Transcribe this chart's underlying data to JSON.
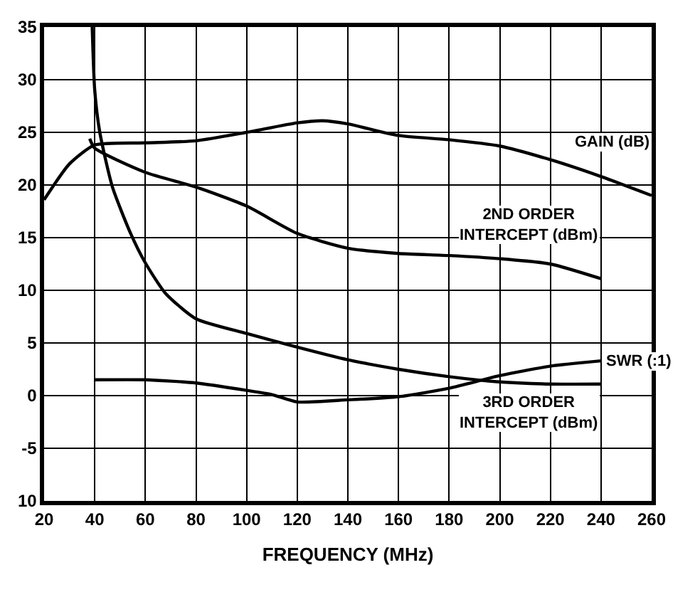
{
  "chart_data": {
    "type": "line",
    "xlabel": "FREQUENCY (MHz)",
    "xlim": [
      20,
      260
    ],
    "xticks": [
      20,
      40,
      60,
      80,
      100,
      120,
      140,
      160,
      180,
      200,
      220,
      240,
      260
    ],
    "ylim": [
      -10,
      35
    ],
    "yticks": [
      {
        "value": -10,
        "label": "10"
      },
      -5,
      0,
      5,
      10,
      15,
      20,
      25,
      30,
      35
    ],
    "grid": true,
    "legend": false,
    "marker": "none",
    "line_style": "solid",
    "series": [
      {
        "name": "GAIN (dB)",
        "color": "#000000",
        "x": [
          20,
          30,
          40,
          60,
          80,
          100,
          120,
          130,
          140,
          160,
          180,
          200,
          220,
          240,
          260
        ],
        "values": [
          18.6,
          22,
          23.8,
          24,
          24.2,
          25,
          25.9,
          26.1,
          25.8,
          24.7,
          24.3,
          23.7,
          22.4,
          20.8,
          19
        ]
      },
      {
        "name": "2ND ORDER\nINTERCEPT (dBm)",
        "color": "#000000",
        "x": [
          38,
          40,
          60,
          80,
          100,
          120,
          140,
          160,
          180,
          200,
          220,
          240
        ],
        "values": [
          24.4,
          23.5,
          21.2,
          19.8,
          18,
          15.4,
          14,
          13.5,
          13.3,
          13,
          12.5,
          11.1
        ]
      },
      {
        "name": "3RD ORDER\nINTERCEPT (dBm)",
        "color": "#000000",
        "x": [
          39,
          40,
          42,
          47,
          54,
          60,
          68,
          80,
          100,
          120,
          140,
          160,
          180,
          200,
          220,
          240
        ],
        "values": [
          35,
          29,
          25,
          19.8,
          15.5,
          12.6,
          9.7,
          7.3,
          5.9,
          4.6,
          3.4,
          2.5,
          1.8,
          1.3,
          1.1,
          1.1
        ]
      },
      {
        "name": "SWR (:1)",
        "color": "#000000",
        "x": [
          40,
          60,
          80,
          100,
          110,
          120,
          140,
          160,
          180,
          200,
          220,
          240
        ],
        "values": [
          1.5,
          1.5,
          1.2,
          0.5,
          0.1,
          -0.6,
          -0.4,
          -0.1,
          0.7,
          1.9,
          2.8,
          3.3
        ]
      }
    ]
  }
}
